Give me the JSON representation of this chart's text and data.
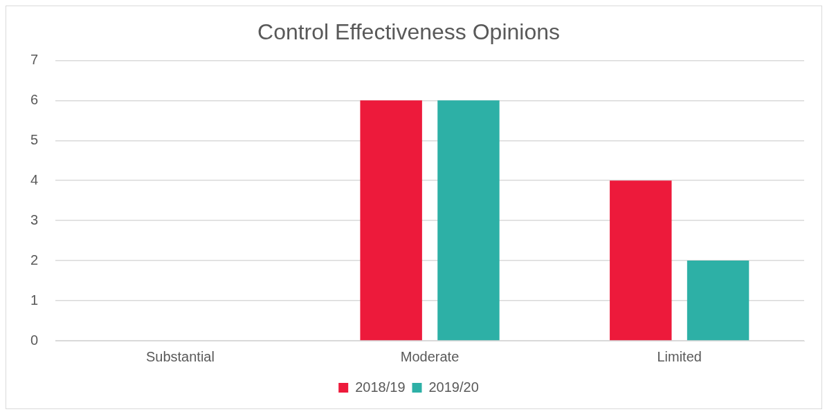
{
  "chart_data": {
    "type": "bar",
    "title": "Control Effectiveness Opinions",
    "categories": [
      "Substantial",
      "Moderate",
      "Limited"
    ],
    "series": [
      {
        "name": "2018/19",
        "color": "#ed1a3b",
        "values": [
          0,
          6,
          4
        ]
      },
      {
        "name": "2019/20",
        "color": "#2db0a6",
        "values": [
          0,
          6,
          2
        ]
      }
    ],
    "ylim": [
      0,
      7
    ],
    "yticks": [
      0,
      1,
      2,
      3,
      4,
      5,
      6,
      7
    ],
    "grid": "y",
    "legend": "bottom"
  }
}
